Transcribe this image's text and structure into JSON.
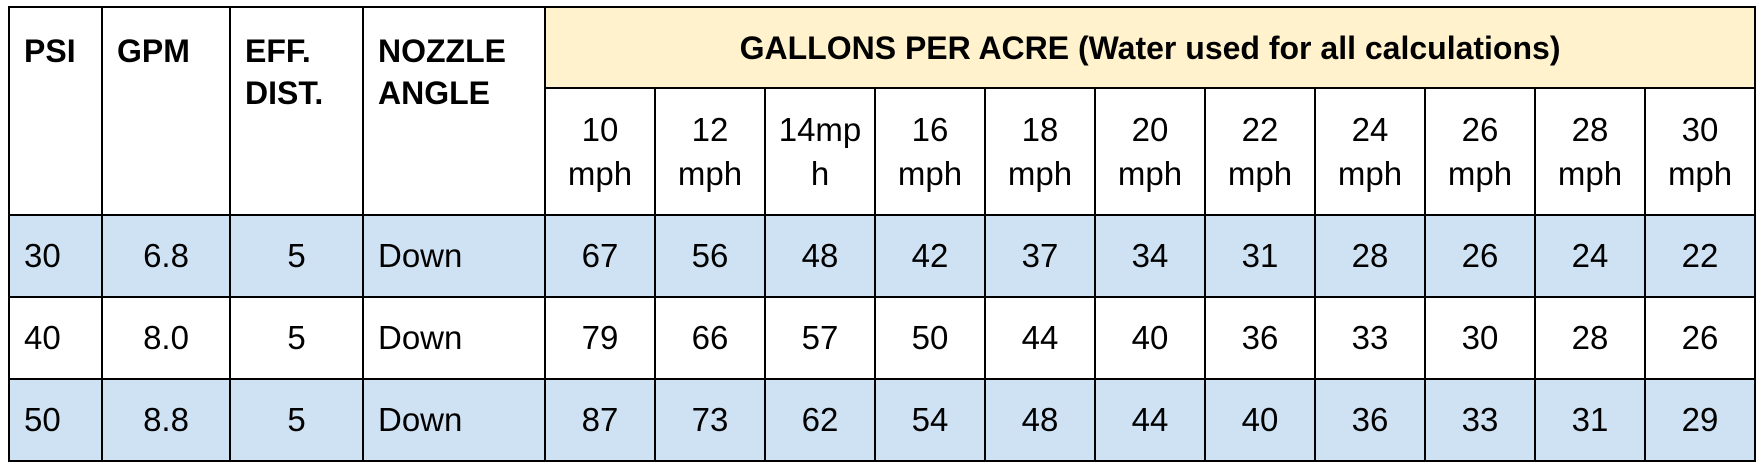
{
  "table": {
    "columns": [
      "PSI",
      "GPM",
      "EFF. DIST.",
      "NOZZLE ANGLE"
    ],
    "group_header": "GALLONS PER ACRE (Water used for all calculations)",
    "speeds": [
      "10 mph",
      "12 mph",
      "14mph",
      "16 mph",
      "18 mph",
      "20 mph",
      "22 mph",
      "24 mph",
      "26 mph",
      "28 mph",
      "30 mph"
    ],
    "rows": [
      [
        "30",
        "6.8",
        "5",
        "Down",
        "67",
        "56",
        "48",
        "42",
        "37",
        "34",
        "31",
        "28",
        "26",
        "24",
        "22"
      ],
      [
        "40",
        "8.0",
        "5",
        "Down",
        "79",
        "66",
        "57",
        "50",
        "44",
        "40",
        "36",
        "33",
        "30",
        "28",
        "26"
      ],
      [
        "50",
        "8.8",
        "5",
        "Down",
        "87",
        "73",
        "62",
        "54",
        "48",
        "44",
        "40",
        "36",
        "33",
        "31",
        "29"
      ]
    ]
  }
}
